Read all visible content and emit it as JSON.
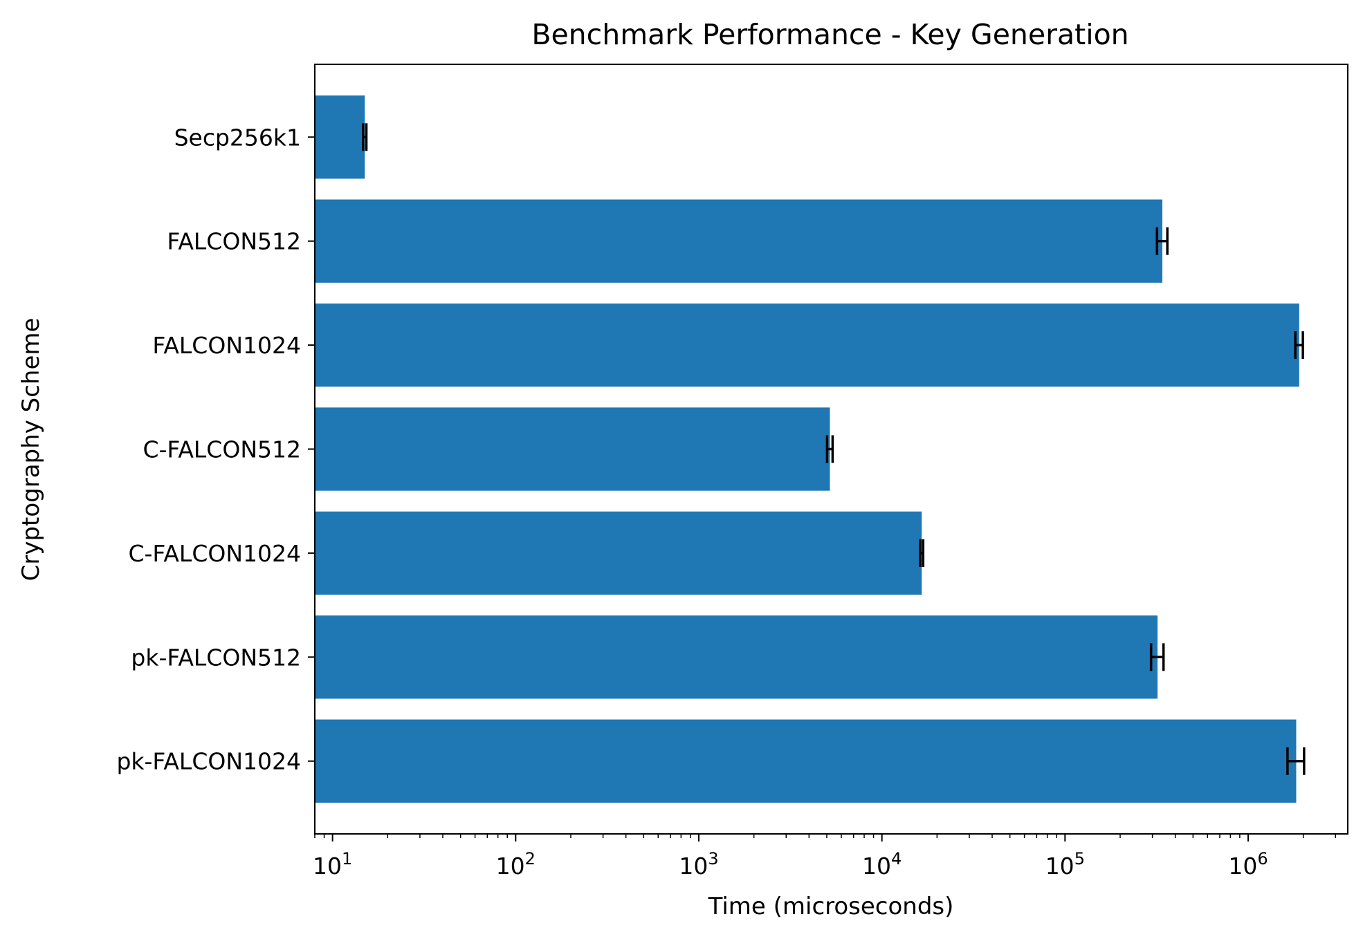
{
  "chart_data": {
    "type": "bar",
    "orientation": "horizontal",
    "title": "Benchmark Performance - Key Generation",
    "xlabel": "Time (microseconds)",
    "ylabel": "Cryptography Scheme",
    "x_scale": "log",
    "xlim": [
      8,
      3500000
    ],
    "x_ticks": [
      {
        "value": 10,
        "base": "10",
        "exp": "1"
      },
      {
        "value": 100,
        "base": "10",
        "exp": "2"
      },
      {
        "value": 1000,
        "base": "10",
        "exp": "3"
      },
      {
        "value": 10000,
        "base": "10",
        "exp": "4"
      },
      {
        "value": 100000,
        "base": "10",
        "exp": "5"
      },
      {
        "value": 1000000,
        "base": "10",
        "exp": "6"
      }
    ],
    "categories": [
      "Secp256k1",
      "FALCON512",
      "FALCON1024",
      "C-FALCON512",
      "C-FALCON1024",
      "pk-FALCON512",
      "pk-FALCON1024"
    ],
    "values": [
      15,
      340000,
      1900000,
      5200,
      16500,
      320000,
      1830000
    ],
    "errors": [
      0.3,
      22000,
      90000,
      180,
      300,
      25000,
      190000
    ],
    "bar_color": "#1f77b4",
    "error_color": "#000000",
    "grid": false,
    "legend": "none"
  }
}
